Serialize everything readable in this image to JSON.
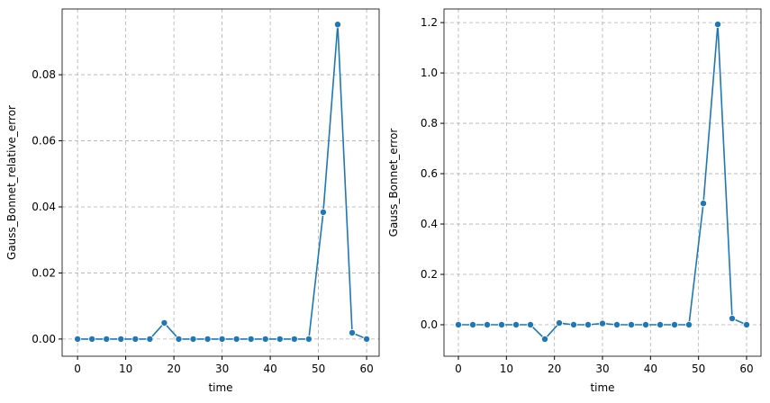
{
  "chart_data": [
    {
      "type": "line",
      "xlabel": "time",
      "ylabel": "Gauss_Bonnet_relative_error",
      "x": [
        0,
        3,
        6,
        9,
        12,
        15,
        18,
        21,
        24,
        27,
        30,
        33,
        36,
        39,
        42,
        45,
        48,
        51,
        54,
        57,
        60
      ],
      "series": [
        {
          "color": "#1f77b4",
          "values": [
            0,
            0,
            0,
            0,
            0,
            0,
            0.0049,
            0,
            0,
            0,
            0,
            0,
            0,
            0,
            0,
            0,
            0,
            0.0384,
            0.0952,
            0.0019,
            0
          ]
        }
      ],
      "xlim": [
        -3.2,
        62.6
      ],
      "ylim": [
        -0.0052,
        0.0999
      ],
      "xticks": [
        0,
        10,
        20,
        30,
        40,
        50,
        60
      ],
      "yticks": [
        {
          "value": 0,
          "label": "0.00"
        },
        {
          "value": 0.02,
          "label": "0.02"
        },
        {
          "value": 0.04,
          "label": "0.04"
        },
        {
          "value": 0.06,
          "label": "0.06"
        },
        {
          "value": 0.08,
          "label": "0.08"
        }
      ],
      "grid": true
    },
    {
      "type": "line",
      "xlabel": "time",
      "ylabel": "Gauss_Bonnet_error",
      "x": [
        0,
        3,
        6,
        9,
        12,
        15,
        18,
        21,
        24,
        27,
        30,
        33,
        36,
        39,
        42,
        45,
        48,
        51,
        54,
        57,
        60
      ],
      "series": [
        {
          "color": "#1f77b4",
          "values": [
            0,
            0,
            0,
            0,
            0,
            0,
            -0.057,
            0.007,
            0,
            0,
            0.005,
            0,
            0,
            0,
            0,
            0,
            0,
            0.482,
            1.193,
            0.025,
            0
          ]
        }
      ],
      "xlim": [
        -3,
        63
      ],
      "ylim": [
        -0.125,
        1.254
      ],
      "xticks": [
        0,
        10,
        20,
        30,
        40,
        50,
        60
      ],
      "yticks": [
        {
          "value": 0,
          "label": "0.0"
        },
        0.2,
        0.4,
        0.6,
        0.8,
        {
          "value": 1,
          "label": "1.0"
        },
        1.2
      ],
      "grid": true
    }
  ]
}
